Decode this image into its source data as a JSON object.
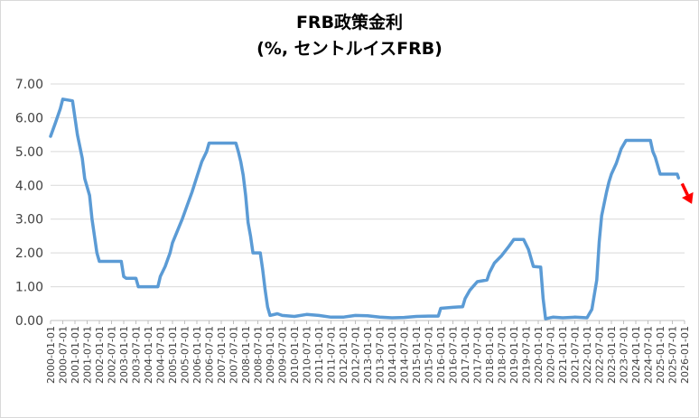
{
  "chart_data": {
    "type": "line",
    "title": "FRB政策金利",
    "subtitle": "(%, セントルイスFRB)",
    "xlabel": "",
    "ylabel": "",
    "ylim": [
      0,
      7
    ],
    "yticks": [
      "0.00",
      "1.00",
      "2.00",
      "3.00",
      "4.00",
      "5.00",
      "6.00",
      "7.00"
    ],
    "xticks": [
      "2000-01-01",
      "2000-07-01",
      "2001-01-01",
      "2001-07-01",
      "2002-01-01",
      "2002-07-01",
      "2003-01-01",
      "2003-07-01",
      "2004-01-01",
      "2004-07-01",
      "2005-01-01",
      "2005-07-01",
      "2006-01-01",
      "2006-07-01",
      "2007-01-01",
      "2007-07-01",
      "2008-01-01",
      "2008-07-01",
      "2009-01-01",
      "2009-07-01",
      "2010-01-01",
      "2010-07-01",
      "2011-01-01",
      "2011-07-01",
      "2012-01-01",
      "2012-07-01",
      "2013-01-01",
      "2013-07-01",
      "2014-01-01",
      "2014-07-01",
      "2015-01-01",
      "2015-07-01",
      "2016-01-01",
      "2016-07-01",
      "2017-01-01",
      "2017-07-01",
      "2018-01-01",
      "2018-07-01",
      "2019-01-01",
      "2019-07-01",
      "2020-01-01",
      "2020-07-01",
      "2021-01-01",
      "2021-07-01",
      "2022-01-01",
      "2022-07-01",
      "2023-01-01",
      "2023-07-01",
      "2024-01-01",
      "2024-07-01",
      "2025-01-01",
      "2025-07-01",
      "2026-01-01"
    ],
    "grid": true,
    "series": [
      {
        "color": "#5b9bd5",
        "points": [
          [
            2000.0,
            5.45
          ],
          [
            2000.2,
            5.85
          ],
          [
            2000.4,
            6.27
          ],
          [
            2000.5,
            6.55
          ],
          [
            2000.9,
            6.5
          ],
          [
            2001.0,
            6.0
          ],
          [
            2001.1,
            5.5
          ],
          [
            2001.3,
            4.8
          ],
          [
            2001.4,
            4.2
          ],
          [
            2001.6,
            3.7
          ],
          [
            2001.7,
            3.0
          ],
          [
            2001.8,
            2.5
          ],
          [
            2001.9,
            2.0
          ],
          [
            2002.0,
            1.75
          ],
          [
            2002.9,
            1.75
          ],
          [
            2003.0,
            1.3
          ],
          [
            2003.1,
            1.25
          ],
          [
            2003.5,
            1.25
          ],
          [
            2003.6,
            1.0
          ],
          [
            2004.0,
            1.0
          ],
          [
            2004.1,
            1.0
          ],
          [
            2004.4,
            1.0
          ],
          [
            2004.5,
            1.3
          ],
          [
            2004.7,
            1.6
          ],
          [
            2004.9,
            2.0
          ],
          [
            2005.0,
            2.3
          ],
          [
            2005.2,
            2.65
          ],
          [
            2005.4,
            3.0
          ],
          [
            2005.6,
            3.4
          ],
          [
            2005.8,
            3.8
          ],
          [
            2006.0,
            4.25
          ],
          [
            2006.2,
            4.7
          ],
          [
            2006.4,
            5.0
          ],
          [
            2006.5,
            5.25
          ],
          [
            2007.6,
            5.25
          ],
          [
            2007.7,
            5.0
          ],
          [
            2007.8,
            4.7
          ],
          [
            2007.9,
            4.3
          ],
          [
            2008.0,
            3.7
          ],
          [
            2008.1,
            2.9
          ],
          [
            2008.2,
            2.5
          ],
          [
            2008.3,
            2.0
          ],
          [
            2008.6,
            2.0
          ],
          [
            2008.7,
            1.5
          ],
          [
            2008.8,
            0.9
          ],
          [
            2008.9,
            0.4
          ],
          [
            2009.0,
            0.15
          ],
          [
            2009.3,
            0.2
          ],
          [
            2009.5,
            0.15
          ],
          [
            2010.0,
            0.12
          ],
          [
            2010.5,
            0.18
          ],
          [
            2011.0,
            0.15
          ],
          [
            2011.5,
            0.1
          ],
          [
            2012.0,
            0.1
          ],
          [
            2012.5,
            0.15
          ],
          [
            2013.0,
            0.14
          ],
          [
            2013.5,
            0.1
          ],
          [
            2014.0,
            0.08
          ],
          [
            2014.5,
            0.09
          ],
          [
            2015.0,
            0.12
          ],
          [
            2015.5,
            0.13
          ],
          [
            2015.9,
            0.13
          ],
          [
            2016.0,
            0.36
          ],
          [
            2016.5,
            0.39
          ],
          [
            2016.9,
            0.41
          ],
          [
            2017.0,
            0.65
          ],
          [
            2017.2,
            0.9
          ],
          [
            2017.5,
            1.15
          ],
          [
            2017.9,
            1.2
          ],
          [
            2018.0,
            1.42
          ],
          [
            2018.2,
            1.7
          ],
          [
            2018.5,
            1.92
          ],
          [
            2018.8,
            2.2
          ],
          [
            2019.0,
            2.4
          ],
          [
            2019.4,
            2.4
          ],
          [
            2019.6,
            2.1
          ],
          [
            2019.8,
            1.6
          ],
          [
            2020.1,
            1.58
          ],
          [
            2020.2,
            0.65
          ],
          [
            2020.3,
            0.05
          ],
          [
            2020.6,
            0.1
          ],
          [
            2021.0,
            0.08
          ],
          [
            2021.5,
            0.1
          ],
          [
            2022.0,
            0.08
          ],
          [
            2022.2,
            0.33
          ],
          [
            2022.4,
            1.2
          ],
          [
            2022.5,
            2.33
          ],
          [
            2022.6,
            3.1
          ],
          [
            2022.8,
            3.8
          ],
          [
            2022.9,
            4.1
          ],
          [
            2023.0,
            4.33
          ],
          [
            2023.2,
            4.65
          ],
          [
            2023.4,
            5.08
          ],
          [
            2023.6,
            5.33
          ],
          [
            2024.6,
            5.33
          ],
          [
            2024.7,
            5.0
          ],
          [
            2024.8,
            4.83
          ],
          [
            2025.0,
            4.33
          ],
          [
            2025.7,
            4.33
          ],
          [
            2025.75,
            4.22
          ]
        ]
      }
    ],
    "annotation": {
      "type": "arrow",
      "color": "#ff0000",
      "from": [
        2025.9,
        4.05
      ],
      "to": [
        2026.3,
        3.45
      ]
    }
  }
}
